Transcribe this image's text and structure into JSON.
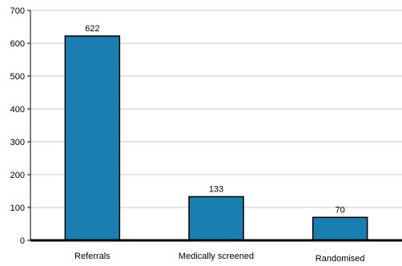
{
  "chart_data": {
    "type": "bar",
    "title": "",
    "xlabel": "",
    "ylabel": "",
    "categories": [
      "Referrals",
      "Medically screened",
      "Randomised"
    ],
    "values": [
      622,
      133,
      70
    ],
    "data_labels": [
      "622",
      "133",
      "70"
    ],
    "ylim": [
      0,
      700
    ],
    "yticks": [
      0,
      100,
      200,
      300,
      400,
      500,
      600,
      700
    ],
    "grid": true,
    "legend": "none",
    "colors": {
      "bar_fill": "#1a7fb0",
      "bar_stroke": "#000000",
      "grid": "#c8c8c8",
      "axis": "#000000"
    }
  }
}
